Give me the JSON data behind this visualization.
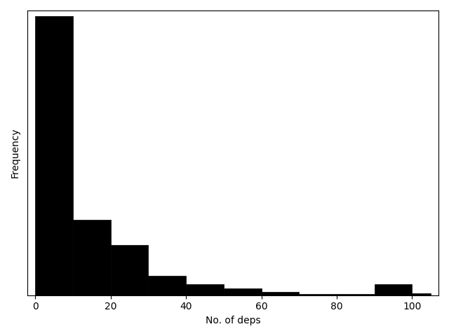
{
  "bin_edges": [
    0,
    10,
    20,
    30,
    40,
    50,
    60,
    70,
    80,
    90,
    100,
    105
  ],
  "bar_heights": [
    1.0,
    0.27,
    0.18,
    0.07,
    0.04,
    0.025,
    0.013,
    0.005,
    0.005,
    0.04,
    0.008
  ],
  "bar_color": "#000000",
  "edge_color": "#000000",
  "xlabel": "No. of deps",
  "ylabel": "Frequency",
  "xlim": [
    -2,
    107
  ],
  "figsize": [
    6.4,
    4.8
  ],
  "dpi": 100,
  "xticks": [
    0,
    20,
    40,
    60,
    80,
    100
  ]
}
